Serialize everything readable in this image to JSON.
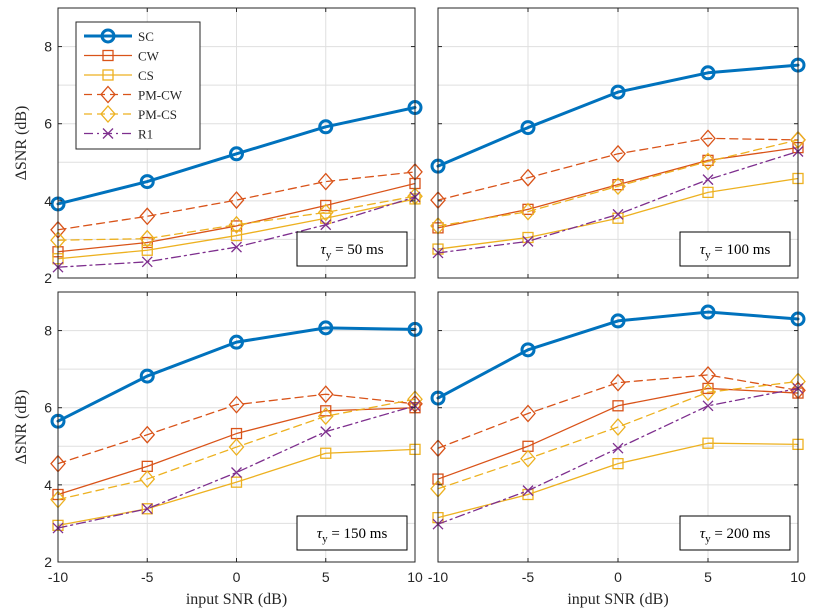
{
  "chart_data": {
    "type": "line",
    "x": [
      -10,
      -5,
      0,
      5,
      10
    ],
    "xlim": [
      -10,
      10
    ],
    "ylim": [
      2,
      9
    ],
    "xticks": [
      "-10",
      "-5",
      "0",
      "5",
      "10"
    ],
    "yticks": [
      "2",
      "4",
      "6",
      "8"
    ],
    "xlabel": "input SNR (dB)",
    "ylabel": "ΔSNR (dB)",
    "grid": true,
    "legend_position": "top-left of first panel",
    "styles": [
      {
        "name": "SC",
        "color": "#0072BD",
        "marker": "circle",
        "dash": "solid",
        "width": 3
      },
      {
        "name": "CW",
        "color": "#D95319",
        "marker": "square",
        "dash": "solid",
        "width": 1.3
      },
      {
        "name": "CS",
        "color": "#EDB120",
        "marker": "square",
        "dash": "solid",
        "width": 1.3
      },
      {
        "name": "PM-CW",
        "color": "#D95319",
        "marker": "diamond",
        "dash": "dashed",
        "width": 1.3
      },
      {
        "name": "PM-CS",
        "color": "#EDB120",
        "marker": "diamond",
        "dash": "dashed",
        "width": 1.3
      },
      {
        "name": "R1",
        "color": "#7E2F8E",
        "marker": "x",
        "dash": "dashdot",
        "width": 1.3
      }
    ],
    "panels": [
      {
        "annotation_prefix": "τ",
        "annotation_sub": "y",
        "annotation_value": " = 50 ms",
        "series": [
          {
            "name": "SC",
            "values": [
              3.92,
              4.5,
              5.22,
              5.92,
              6.42
            ]
          },
          {
            "name": "CW",
            "values": [
              2.68,
              2.92,
              3.35,
              3.88,
              4.45
            ]
          },
          {
            "name": "CS",
            "values": [
              2.5,
              2.72,
              3.1,
              3.55,
              4.05
            ]
          },
          {
            "name": "PM-CW",
            "values": [
              3.25,
              3.6,
              4.02,
              4.5,
              4.75
            ]
          },
          {
            "name": "PM-CS",
            "values": [
              2.98,
              3.02,
              3.38,
              3.7,
              4.12
            ]
          },
          {
            "name": "R1",
            "values": [
              2.28,
              2.42,
              2.8,
              3.38,
              4.1
            ]
          }
        ]
      },
      {
        "annotation_prefix": "τ",
        "annotation_sub": "y",
        "annotation_value": " = 100 ms",
        "series": [
          {
            "name": "SC",
            "values": [
              4.9,
              5.9,
              6.82,
              7.32,
              7.52
            ]
          },
          {
            "name": "CW",
            "values": [
              3.3,
              3.78,
              4.42,
              5.05,
              5.38
            ]
          },
          {
            "name": "CS",
            "values": [
              2.75,
              3.05,
              3.55,
              4.22,
              4.58
            ]
          },
          {
            "name": "PM-CW",
            "values": [
              4.02,
              4.6,
              5.22,
              5.62,
              5.58
            ]
          },
          {
            "name": "PM-CS",
            "values": [
              3.35,
              3.72,
              4.38,
              5.02,
              5.58
            ]
          },
          {
            "name": "R1",
            "values": [
              2.65,
              2.95,
              3.65,
              4.55,
              5.28
            ]
          }
        ]
      },
      {
        "annotation_prefix": "τ",
        "annotation_sub": "y",
        "annotation_value": " = 150 ms",
        "series": [
          {
            "name": "SC",
            "values": [
              5.65,
              6.82,
              7.7,
              8.07,
              8.03
            ]
          },
          {
            "name": "CW",
            "values": [
              3.75,
              4.48,
              5.33,
              5.92,
              6.0
            ]
          },
          {
            "name": "CS",
            "values": [
              2.95,
              3.38,
              4.07,
              4.82,
              4.92
            ]
          },
          {
            "name": "PM-CW",
            "values": [
              4.55,
              5.3,
              6.08,
              6.35,
              6.1
            ]
          },
          {
            "name": "PM-CS",
            "values": [
              3.62,
              4.15,
              4.98,
              5.78,
              6.22
            ]
          },
          {
            "name": "R1",
            "values": [
              2.88,
              3.38,
              4.32,
              5.38,
              6.05
            ]
          }
        ]
      },
      {
        "annotation_prefix": "τ",
        "annotation_sub": "y",
        "annotation_value": " = 200 ms",
        "series": [
          {
            "name": "SC",
            "values": [
              6.25,
              7.5,
              8.25,
              8.48,
              8.3
            ]
          },
          {
            "name": "CW",
            "values": [
              4.15,
              5.0,
              6.05,
              6.5,
              6.38
            ]
          },
          {
            "name": "CS",
            "values": [
              3.15,
              3.75,
              4.55,
              5.08,
              5.05
            ]
          },
          {
            "name": "PM-CW",
            "values": [
              4.95,
              5.85,
              6.65,
              6.85,
              6.45
            ]
          },
          {
            "name": "PM-CS",
            "values": [
              3.9,
              4.68,
              5.5,
              6.4,
              6.68
            ]
          },
          {
            "name": "R1",
            "values": [
              2.98,
              3.85,
              4.95,
              6.05,
              6.5
            ]
          }
        ]
      }
    ]
  }
}
